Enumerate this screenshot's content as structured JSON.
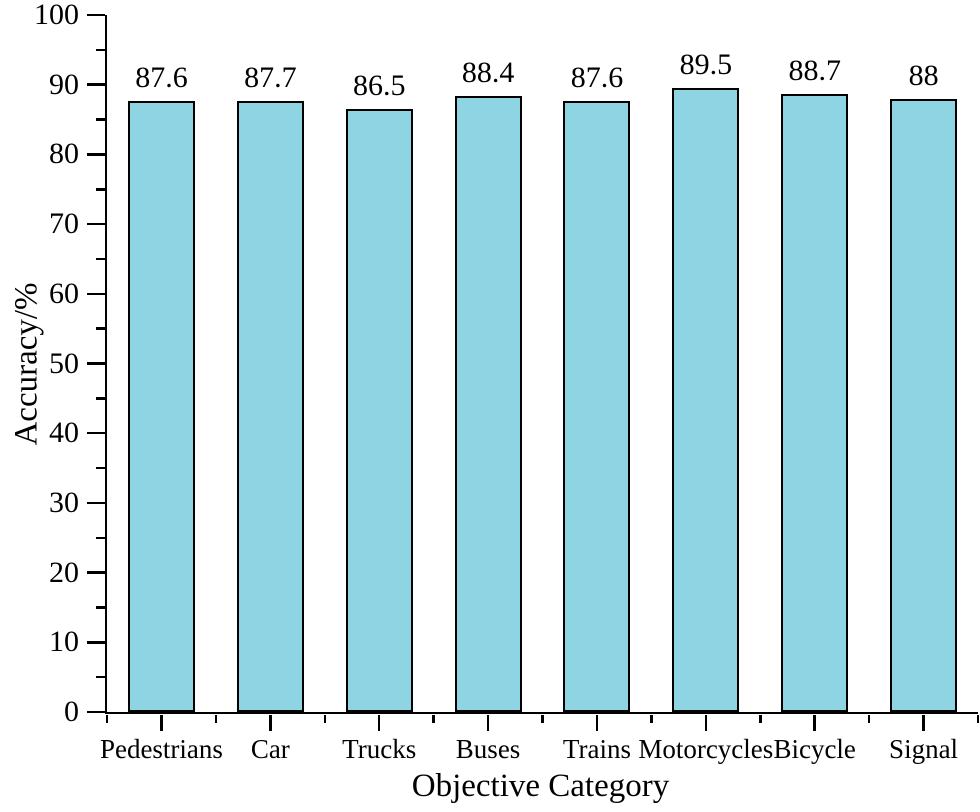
{
  "chart_data": {
    "type": "bar",
    "title": "",
    "xlabel": "Objective Category",
    "ylabel": "Accuracy/%",
    "categories": [
      "Pedestrians",
      "Car",
      "Trucks",
      "Buses",
      "Trains",
      "Motorcycles",
      "Bicycle",
      "Signal"
    ],
    "values": [
      87.6,
      87.7,
      86.5,
      88.4,
      87.6,
      89.5,
      88.7,
      88
    ],
    "value_labels": [
      "87.6",
      "87.7",
      "86.5",
      "88.4",
      "87.6",
      "89.5",
      "88.7",
      "88"
    ],
    "ylim": [
      0,
      100
    ],
    "ytick_labels": [
      "0",
      "10",
      "20",
      "30",
      "40",
      "50",
      "60",
      "70",
      "80",
      "90",
      "100"
    ],
    "ytick_major_step": 10,
    "ytick_minor_step": 5,
    "grid": false,
    "legend_position": "none",
    "colors": {
      "bar_fill": "#8fd4e2",
      "bar_border": "#000000",
      "axis": "#000000",
      "text": "#000000",
      "background": "#ffffff"
    }
  }
}
